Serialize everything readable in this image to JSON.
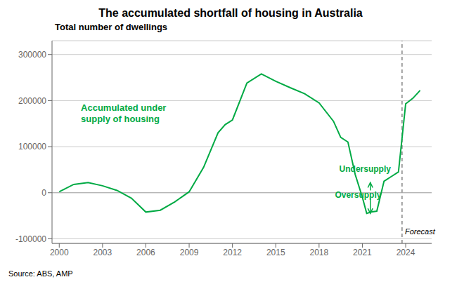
{
  "chart_data": {
    "type": "line",
    "title": "The accumulated shortfall of housing in Australia",
    "subtitle": "Total number of dwellings",
    "source": "Source: ABS, AMP",
    "color": "#00AA44",
    "x": [
      2000,
      2001,
      2002,
      2003,
      2004,
      2005,
      2006,
      2007,
      2008,
      2009,
      2010,
      2011,
      2011.5,
      2012,
      2013,
      2014,
      2015,
      2016,
      2017,
      2018,
      2019,
      2019.5,
      2020,
      2020.5,
      2021,
      2021.3,
      2021.6,
      2022,
      2022.5,
      2023,
      2023.5,
      2024,
      2024.5,
      2025
    ],
    "values": [
      2000,
      18000,
      22000,
      15000,
      5000,
      -12000,
      -42000,
      -38000,
      -20000,
      2000,
      55000,
      130000,
      148000,
      158000,
      238000,
      258000,
      242000,
      228000,
      215000,
      195000,
      155000,
      120000,
      110000,
      40000,
      -10000,
      -45000,
      -42000,
      -40000,
      25000,
      35000,
      45000,
      193000,
      205000,
      222000
    ],
    "xlim": [
      1999.5,
      2025.8
    ],
    "ylim": [
      -110000,
      330000
    ],
    "xticks": [
      2000,
      2003,
      2006,
      2009,
      2012,
      2015,
      2018,
      2021,
      2024
    ],
    "yticks": [
      -100000,
      0,
      100000,
      200000,
      300000
    ],
    "grid": true,
    "reference_lines": [
      {
        "x": 2023.75,
        "color": "#666666",
        "line_style": "dashed",
        "label": "Forecast",
        "label_y": -95000
      },
      {
        "y": 0,
        "color": "#aaaaaa"
      }
    ],
    "annotations": [
      {
        "text": "Accumulated under\nsupply of housing",
        "x": 2001.5,
        "y": 195000
      },
      {
        "text": "Undersupply",
        "x": 2019.4,
        "y": 40000,
        "arrow": {
          "x": 2021.55,
          "from": 5000,
          "to": 22000
        }
      },
      {
        "text": "Oversupply",
        "x": 2019.1,
        "y": -15000,
        "arrow": {
          "x": 2021.55,
          "from": -12000,
          "to": -45000
        }
      }
    ]
  }
}
